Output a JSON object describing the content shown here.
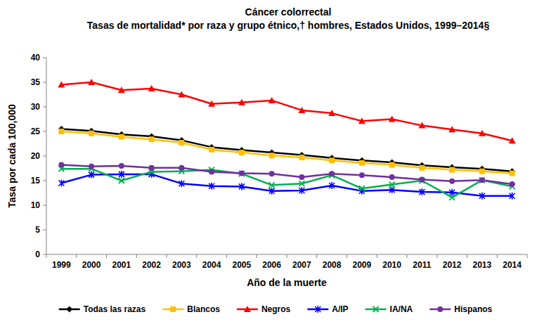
{
  "chart_data": {
    "type": "line",
    "title": "Cáncer colorrectal",
    "subtitle": "Tasas de mortalidad* por raza y grupo étnico,† hombres, Estados Unidos, 1999–2014§",
    "x_label": "Año de la muerte",
    "y_label": "Tasa por cada 100,000",
    "categories": [
      "1999",
      "2000",
      "2001",
      "2002",
      "2003",
      "2004",
      "2005",
      "2006",
      "2007",
      "2008",
      "2009",
      "2010",
      "2011",
      "2012",
      "2013",
      "2014"
    ],
    "ylim": [
      0,
      40
    ],
    "yticks": [
      0,
      5,
      10,
      15,
      20,
      25,
      30,
      35,
      40
    ],
    "grid": false,
    "legend": "bottom",
    "series": [
      {
        "name": "Todas las razas",
        "color": "#000000",
        "marker": "diamond",
        "values": [
          25.5,
          25.1,
          24.4,
          24.0,
          23.2,
          21.8,
          21.2,
          20.7,
          20.2,
          19.6,
          19.1,
          18.7,
          18.1,
          17.7,
          17.4,
          16.9
        ]
      },
      {
        "name": "Blancos",
        "color": "#FFC000",
        "marker": "square",
        "values": [
          25.0,
          24.6,
          23.9,
          23.4,
          22.7,
          21.3,
          20.7,
          20.1,
          19.7,
          19.1,
          18.6,
          18.2,
          17.6,
          17.2,
          16.9,
          16.5
        ]
      },
      {
        "name": "Negros",
        "color": "#FF0000",
        "marker": "triangle",
        "values": [
          34.5,
          35.0,
          33.4,
          33.7,
          32.5,
          30.6,
          30.9,
          31.3,
          29.3,
          28.7,
          27.1,
          27.5,
          26.2,
          25.4,
          24.6,
          23.1
        ]
      },
      {
        "name": "A/IP",
        "color": "#0000FF",
        "marker": "star",
        "values": [
          14.5,
          16.2,
          16.3,
          16.3,
          14.4,
          13.9,
          13.8,
          12.9,
          13.0,
          14.0,
          12.9,
          13.1,
          12.7,
          12.6,
          11.9,
          11.9
        ]
      },
      {
        "name": "IA/NA",
        "color": "#00B050",
        "marker": "x",
        "values": [
          17.4,
          17.4,
          15.0,
          16.8,
          16.9,
          17.2,
          16.4,
          14.1,
          14.4,
          16.1,
          13.4,
          14.2,
          15.0,
          11.6,
          15.1,
          13.8
        ]
      },
      {
        "name": "Hispanos",
        "color": "#7030A0",
        "marker": "circle",
        "values": [
          18.2,
          17.9,
          18.0,
          17.6,
          17.6,
          16.8,
          16.5,
          16.4,
          15.7,
          16.4,
          16.1,
          15.7,
          15.2,
          14.9,
          15.1,
          14.3
        ]
      }
    ]
  }
}
